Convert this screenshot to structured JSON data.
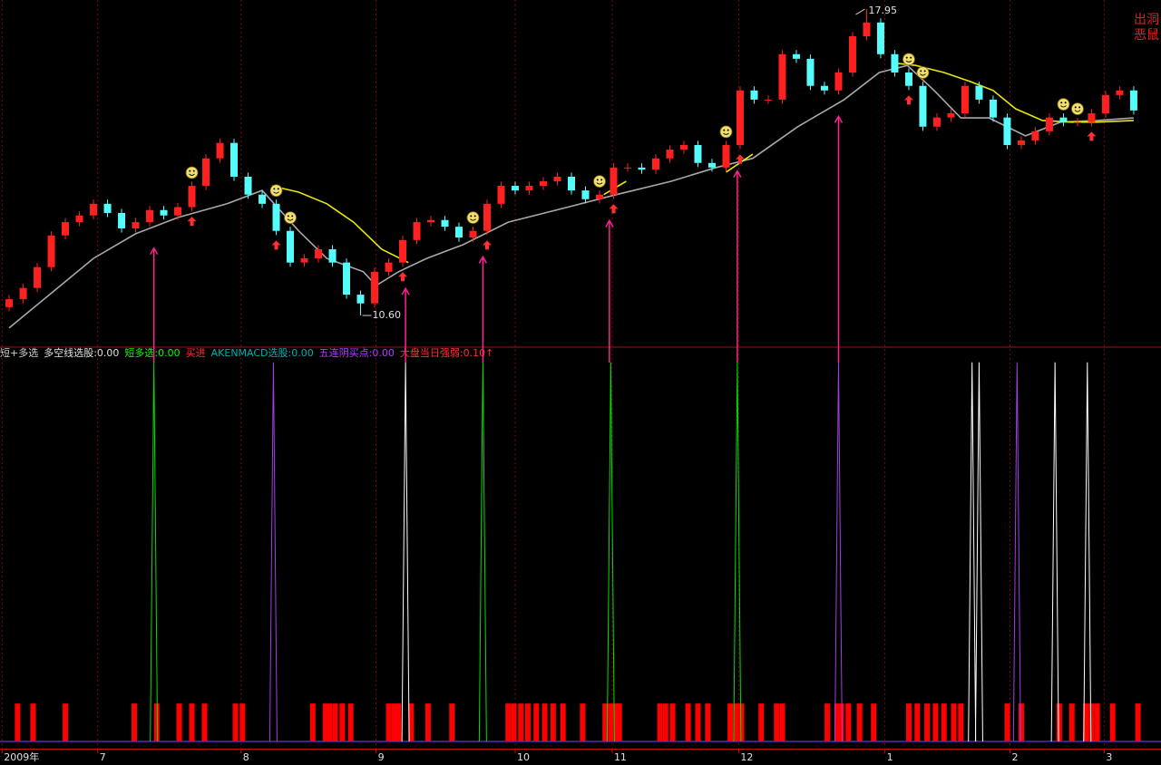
{
  "chart_data": {
    "type": "candlestick",
    "corner_labels": [
      "出洞",
      "恶鼠"
    ],
    "xlim": [
      -0.52,
      81.94
    ],
    "ylim": [
      9.84,
      18.17
    ],
    "xticks": [
      {
        "value": -0.5,
        "label": "2009年"
      },
      {
        "value": 6.3,
        "label": "7"
      },
      {
        "value": 16.5,
        "label": "8"
      },
      {
        "value": 26.1,
        "label": "9"
      },
      {
        "value": 36.0,
        "label": "10"
      },
      {
        "value": 42.9,
        "label": "11"
      },
      {
        "value": 51.9,
        "label": "12"
      },
      {
        "value": 62.3,
        "label": "1"
      },
      {
        "value": 71.2,
        "label": "2"
      },
      {
        "value": 77.9,
        "label": "3"
      }
    ],
    "up_color": "#ff2020",
    "down_color": "#54fcfc",
    "candles": {
      "open": [
        10.8,
        10.99,
        11.26,
        11.76,
        12.52,
        12.84,
        13.0,
        13.28,
        13.06,
        12.69,
        12.84,
        13.13,
        13.0,
        13.2,
        13.71,
        14.37,
        14.74,
        13.93,
        13.5,
        13.28,
        12.63,
        11.87,
        11.97,
        12.19,
        11.87,
        11.1,
        10.89,
        11.65,
        11.87,
        12.41,
        12.84,
        12.89,
        12.73,
        12.47,
        12.63,
        13.28,
        13.71,
        13.6,
        13.71,
        13.82,
        13.93,
        13.6,
        13.39,
        13.5,
        14.15,
        14.15,
        14.1,
        14.37,
        14.58,
        14.69,
        14.26,
        14.15,
        14.69,
        16.0,
        15.78,
        15.78,
        16.87,
        16.76,
        16.11,
        16.0,
        16.43,
        17.3,
        17.63,
        16.87,
        16.43,
        16.11,
        15.13,
        15.35,
        15.45,
        16.11,
        15.78,
        15.35,
        14.69,
        14.8,
        15.02,
        15.35,
        15.24,
        15.24,
        15.45,
        15.89,
        16.0
      ],
      "high": [
        11.09,
        11.36,
        11.86,
        12.62,
        12.94,
        13.1,
        13.38,
        13.38,
        13.16,
        12.94,
        13.23,
        13.23,
        13.3,
        13.81,
        14.47,
        14.84,
        14.84,
        14.03,
        13.6,
        13.38,
        12.73,
        12.07,
        12.29,
        12.29,
        11.97,
        11.2,
        11.75,
        11.97,
        12.51,
        12.94,
        12.99,
        12.99,
        12.83,
        12.73,
        13.38,
        13.81,
        13.81,
        13.81,
        13.92,
        14.03,
        14.03,
        13.7,
        13.6,
        14.25,
        14.25,
        14.25,
        14.47,
        14.68,
        14.79,
        14.79,
        14.36,
        14.79,
        16.1,
        16.1,
        15.88,
        16.97,
        16.97,
        16.86,
        16.21,
        16.53,
        17.4,
        17.95,
        17.73,
        16.97,
        16.53,
        16.21,
        15.45,
        15.55,
        16.21,
        16.21,
        15.88,
        15.45,
        14.9,
        15.12,
        15.45,
        15.45,
        15.34,
        15.55,
        15.99,
        16.1,
        16.1
      ],
      "low": [
        10.7,
        10.89,
        11.16,
        11.66,
        12.42,
        12.74,
        12.9,
        12.96,
        12.59,
        12.59,
        12.74,
        12.9,
        12.9,
        13.1,
        13.61,
        14.27,
        13.83,
        13.4,
        13.18,
        12.53,
        11.77,
        11.77,
        11.87,
        11.77,
        11.0,
        10.6,
        10.79,
        11.55,
        11.77,
        12.31,
        12.74,
        12.63,
        12.37,
        12.37,
        12.53,
        13.18,
        13.5,
        13.5,
        13.61,
        13.72,
        13.5,
        13.29,
        13.29,
        13.4,
        14.05,
        14.0,
        14.0,
        14.27,
        14.48,
        14.16,
        14.05,
        14.05,
        14.59,
        15.68,
        15.68,
        15.68,
        16.66,
        16.01,
        15.9,
        15.9,
        16.33,
        17.2,
        16.77,
        16.33,
        16.01,
        15.03,
        15.03,
        15.25,
        15.35,
        15.68,
        15.25,
        14.59,
        14.59,
        14.7,
        14.92,
        15.14,
        15.14,
        15.14,
        15.35,
        15.79,
        15.42
      ],
      "close": [
        10.99,
        11.26,
        11.76,
        12.52,
        12.84,
        13.0,
        13.28,
        13.06,
        12.69,
        12.84,
        13.13,
        13.0,
        13.2,
        13.71,
        14.37,
        14.74,
        13.93,
        13.5,
        13.28,
        12.63,
        11.87,
        11.97,
        12.19,
        11.87,
        11.1,
        10.89,
        11.65,
        11.87,
        12.41,
        12.84,
        12.89,
        12.73,
        12.47,
        12.63,
        13.28,
        13.71,
        13.6,
        13.71,
        13.82,
        13.93,
        13.6,
        13.39,
        13.5,
        14.15,
        14.15,
        14.1,
        14.37,
        14.58,
        14.69,
        14.26,
        14.15,
        14.69,
        16.0,
        15.78,
        15.78,
        16.87,
        16.76,
        16.11,
        16.0,
        16.43,
        17.3,
        17.63,
        16.87,
        16.43,
        16.11,
        15.13,
        15.35,
        15.45,
        16.11,
        15.78,
        15.35,
        14.69,
        14.8,
        15.02,
        15.35,
        15.24,
        15.24,
        15.45,
        15.89,
        16.0,
        15.52
      ]
    },
    "lines": [
      {
        "color": "#a8a8a8",
        "x": [
          0,
          6,
          9,
          12,
          15.5,
          18,
          20.6,
          22.6,
          25.2,
          26.1,
          27.7,
          29.7,
          32.3,
          35.5,
          39.4,
          43.2,
          47.1,
          50.3,
          52.9,
          56.1,
          59.4,
          61.9,
          63.9,
          65.8,
          67.7,
          69.7,
          72.3,
          74.8,
          77.4,
          80
        ],
        "values": [
          10.3,
          11.97,
          12.56,
          12.95,
          13.28,
          13.6,
          12.63,
          11.97,
          11.65,
          11.32,
          11.65,
          11.97,
          12.3,
          12.84,
          13.17,
          13.5,
          13.82,
          14.15,
          14.37,
          15.13,
          15.78,
          16.43,
          16.6,
          16.0,
          15.34,
          15.34,
          14.91,
          15.24,
          15.28,
          15.34
        ]
      },
      {
        "color": "#e8e800",
        "x": [
          18.7,
          20.6,
          22.6,
          24.5,
          26.5,
          28.4,
          35,
          42.3,
          43.9,
          48,
          51.0,
          52.9,
          58,
          63.2,
          64.5,
          66.5,
          68.4,
          70,
          71.6,
          73.5,
          75.5,
          77.4,
          80
        ],
        "values": [
          13.71,
          13.56,
          13.28,
          12.84,
          12.19,
          11.87,
          null,
          13.5,
          13.82,
          null,
          14.04,
          14.47,
          null,
          16.65,
          16.6,
          16.43,
          16.21,
          16.0,
          15.56,
          15.28,
          15.24,
          15.24,
          15.28
        ]
      }
    ],
    "annotations": [
      {
        "value": 17.95,
        "label": "17.95"
      },
      {
        "value": 10.6,
        "label": "10.60"
      }
    ],
    "smileys": [
      13,
      19,
      20,
      33,
      42,
      51,
      64,
      65,
      75,
      76
    ],
    "small_arrows": [
      13,
      19,
      28,
      34,
      43,
      52,
      64,
      77
    ],
    "buy_arrows": [
      10.3,
      28.2,
      33.7,
      42.7,
      51.8,
      59.0
    ],
    "indicator": {
      "ylim": [
        0,
        1.04
      ],
      "legend": [
        {
          "name": "短+多选",
          "color": "#d0d0d0"
        },
        {
          "name": "多空线选股:0.00",
          "color": "#e0e0e0"
        },
        {
          "name": "短多选:0.00",
          "color": "#00ff00"
        },
        {
          "name": "买进",
          "color": "#ff3030"
        },
        {
          "name": "AKENMACD选股:0.00",
          "color": "#00b0b0"
        },
        {
          "name": "五连阴买点:0.00",
          "color": "#b040ff"
        },
        {
          "name": "大盘当日强弱:0.10↑",
          "color": "#ff3030"
        }
      ],
      "spikes": {
        "x": [
          10.3,
          18.8,
          28.2,
          33.7,
          42.8,
          51.8,
          59.0,
          68.5,
          69.0,
          71.7,
          74.4,
          76.7
        ],
        "values": [
          1,
          1,
          1,
          1,
          1,
          1,
          1,
          1,
          1,
          1,
          1,
          1
        ],
        "colors": [
          "#00e000",
          "#a040e0",
          "#ffffff",
          "#00e000",
          "#00e000",
          "#00e000",
          "#a040e0",
          "#ffffff",
          "#ffffff",
          "#a040e0",
          "#ffffff",
          "#ffffff"
        ]
      },
      "bars": {
        "color": "#ff0000",
        "x": [
          0.6,
          1.7,
          4.0,
          8.9,
          10.5,
          12.1,
          13.0,
          13.9,
          16.1,
          16.6,
          21.6,
          22.5,
          22.8,
          23.2,
          23.7,
          24.3,
          27.0,
          27.4,
          27.7,
          28.6,
          29.8,
          31.5,
          35.5,
          35.9,
          36.4,
          36.9,
          37.5,
          38.1,
          38.7,
          39.4,
          40.8,
          42.4,
          42.8,
          43.2,
          43.4,
          46.3,
          46.7,
          47.2,
          48.3,
          49.0,
          49.7,
          51.3,
          51.7,
          52.1,
          53.5,
          54.6,
          55.0,
          58.2,
          58.9,
          59.2,
          59.7,
          60.5,
          61.5,
          64.0,
          64.6,
          65.3,
          65.9,
          66.5,
          67.2,
          67.7,
          71.0,
          72.0,
          74.7,
          75.6,
          76.6,
          77.0,
          77.4,
          78.5,
          80.3
        ],
        "values": [
          0.1,
          0.1,
          0.1,
          0.1,
          0.1,
          0.1,
          0.1,
          0.1,
          0.1,
          0.1,
          0.1,
          0.1,
          0.1,
          0.1,
          0.1,
          0.1,
          0.1,
          0.1,
          0.1,
          0.1,
          0.1,
          0.1,
          0.1,
          0.1,
          0.1,
          0.1,
          0.1,
          0.1,
          0.1,
          0.1,
          0.1,
          0.1,
          0.1,
          0.1,
          0.1,
          0.1,
          0.1,
          0.1,
          0.1,
          0.1,
          0.1,
          0.1,
          0.1,
          0.1,
          0.1,
          0.1,
          0.1,
          0.1,
          0.1,
          0.1,
          0.1,
          0.1,
          0.1,
          0.1,
          0.1,
          0.1,
          0.1,
          0.1,
          0.1,
          0.1,
          0.1,
          0.1,
          0.1,
          0.1,
          0.1,
          0.1,
          0.1,
          0.1,
          0.1
        ]
      }
    }
  }
}
